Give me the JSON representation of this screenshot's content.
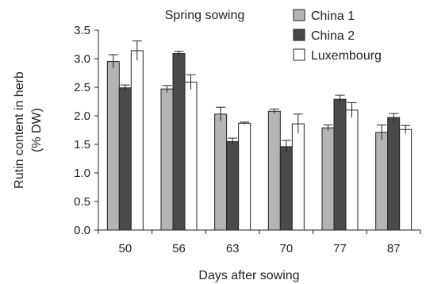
{
  "chart_data": {
    "type": "bar",
    "title": "Spring sowing",
    "xlabel": "Days after sowing",
    "ylabel_lines": [
      "Rutin content in herb",
      "(% DW)"
    ],
    "categories": [
      "50",
      "56",
      "63",
      "70",
      "77",
      "87"
    ],
    "ylim": [
      0,
      3.5
    ],
    "yticks": [
      0.0,
      0.5,
      1.0,
      1.5,
      2.0,
      2.5,
      3.0,
      3.5
    ],
    "ytick_labels": [
      "0.0",
      "0.5",
      "1.0",
      "1.5",
      "2.0",
      "2.5",
      "3.0",
      "3.5"
    ],
    "grid": false,
    "legend_position": "top-right",
    "error_bars": true,
    "series": [
      {
        "name": "China 1",
        "color": "#b4b4b4",
        "values": [
          2.95,
          2.47,
          2.03,
          2.08,
          1.79,
          1.71
        ],
        "errors": [
          0.12,
          0.06,
          0.12,
          0.04,
          0.05,
          0.13
        ]
      },
      {
        "name": "China 2",
        "color": "#4a4a4a",
        "values": [
          2.49,
          3.09,
          1.55,
          1.46,
          2.29,
          1.97
        ],
        "errors": [
          0.05,
          0.04,
          0.06,
          0.11,
          0.07,
          0.07
        ]
      },
      {
        "name": "Luxembourg",
        "color": "#ffffff",
        "values": [
          3.14,
          2.59,
          1.87,
          1.86,
          2.1,
          1.76
        ],
        "errors": [
          0.17,
          0.13,
          0.02,
          0.17,
          0.13,
          0.07
        ]
      }
    ]
  }
}
